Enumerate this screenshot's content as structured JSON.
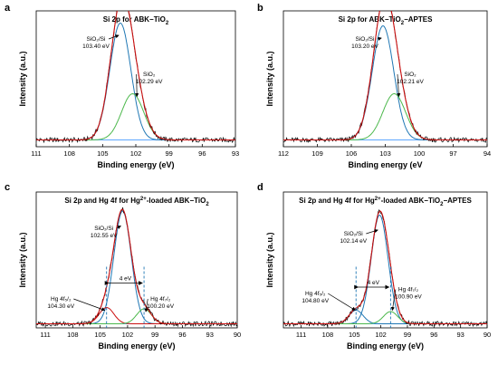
{
  "colors": {
    "raw": "#000000",
    "fit": "#cc1111",
    "main": "#1f77b4",
    "side": "#4cb84c",
    "baseline": "#5fa8ff",
    "arrow": "#000000"
  },
  "chart_data": [
    {
      "type": "line",
      "letter": "a",
      "title_parts": [
        {
          "t": "Si 2p for ABK−TiO"
        },
        {
          "t": "2",
          "sub": true
        }
      ],
      "xlabel": "Binding energy (eV)",
      "ylabel": "Intensity (a.u.)",
      "xlim": [
        111,
        93
      ],
      "xticks": [
        111,
        108,
        105,
        102,
        99,
        96,
        93
      ],
      "series": [
        {
          "center": 103.4,
          "amp": 0.86,
          "width": 0.95,
          "color_key": "main"
        },
        {
          "center": 102.29,
          "amp": 0.34,
          "width": 1.0,
          "color_key": "side"
        }
      ],
      "baseline": 0.05,
      "annotations": [
        {
          "lines": [
            "SiO₂/Si",
            "103.40 eV"
          ],
          "label_at": [
            105.6,
            0.78
          ],
          "arrow_to": [
            103.55,
            0.82
          ]
        },
        {
          "lines": [
            "SiO₂",
            "102.29 eV"
          ],
          "label_at": [
            100.8,
            0.52
          ],
          "arrow_to": [
            101.9,
            0.37
          ]
        }
      ]
    },
    {
      "type": "line",
      "letter": "b",
      "title_parts": [
        {
          "t": "Si 2p for ABK−TiO"
        },
        {
          "t": "2",
          "sub": true
        },
        {
          "t": "−APTES"
        }
      ],
      "xlabel": "Binding energy (eV",
      "ylabel": "Intensity (a.u.)",
      "xlim": [
        112,
        94
      ],
      "xticks": [
        112,
        109,
        106,
        103,
        100,
        97,
        94
      ],
      "series": [
        {
          "center": 103.2,
          "amp": 0.84,
          "width": 0.95,
          "color_key": "main"
        },
        {
          "center": 102.21,
          "amp": 0.34,
          "width": 1.0,
          "color_key": "side"
        }
      ],
      "baseline": 0.05,
      "annotations": [
        {
          "lines": [
            "SiO₂/Si",
            "103.20 eV"
          ],
          "label_at": [
            104.8,
            0.78
          ],
          "arrow_to": [
            103.35,
            0.8
          ]
        },
        {
          "lines": [
            "SiO₂",
            "102.21 eV"
          ],
          "label_at": [
            100.8,
            0.52
          ],
          "arrow_to": [
            101.8,
            0.37
          ]
        }
      ]
    },
    {
      "type": "line",
      "letter": "c",
      "title_parts": [
        {
          "t": "Si 2p and Hg 4f for Hg"
        },
        {
          "t": "2+",
          "sup": true
        },
        {
          "t": "-loaded ABK−TiO"
        },
        {
          "t": "2",
          "sub": true
        }
      ],
      "xlabel": "Binding energy (eV)",
      "ylabel": "Intensity (a.u.)",
      "xlim": [
        112,
        90
      ],
      "xticks": [
        111,
        108,
        105,
        102,
        99,
        96,
        93,
        90
      ],
      "series": [
        {
          "center": 102.55,
          "amp": 0.83,
          "width": 0.95,
          "color_key": "main"
        },
        {
          "center": 104.3,
          "amp": 0.12,
          "width": 0.8,
          "color_key": "fit"
        },
        {
          "center": 100.2,
          "amp": 0.11,
          "width": 0.8,
          "color_key": "side"
        }
      ],
      "baseline": 0.03,
      "vlines": [
        104.3,
        100.2
      ],
      "span": {
        "label": "4 eV",
        "from": 104.3,
        "to": 100.2,
        "y": 0.33
      },
      "annotations": [
        {
          "lines": [
            "SiO₂/Si",
            "102.55 eV"
          ],
          "label_at": [
            104.6,
            0.72
          ],
          "arrow_to": [
            102.75,
            0.75
          ]
        },
        {
          "lines": [
            "Hg 4f₅/₂",
            "104.30 eV"
          ],
          "label_at": [
            109.3,
            0.2
          ],
          "arrow_to": [
            104.5,
            0.13
          ]
        },
        {
          "lines": [
            "Hg 4f₇/₂",
            "100.20 eV"
          ],
          "label_at": [
            98.4,
            0.2
          ],
          "arrow_to": [
            100.0,
            0.12
          ]
        }
      ]
    },
    {
      "type": "line",
      "letter": "d",
      "title_parts": [
        {
          "t": "Si 2p and Hg 4f for Hg"
        },
        {
          "t": "2+",
          "sup": true
        },
        {
          "t": "-loaded ABK−TiO"
        },
        {
          "t": "2",
          "sub": true
        },
        {
          "t": "−APTES"
        }
      ],
      "xlabel": "Binding energy (eV)",
      "ylabel": "Intensity (a.u.)",
      "xlim": [
        113,
        90
      ],
      "xticks": [
        111,
        108,
        105,
        102,
        99,
        96,
        93,
        90
      ],
      "series": [
        {
          "center": 102.14,
          "amp": 0.8,
          "width": 0.95,
          "color_key": "main"
        },
        {
          "center": 104.8,
          "amp": 0.1,
          "width": 0.8,
          "color_key": "main"
        },
        {
          "center": 100.9,
          "amp": 0.09,
          "width": 0.8,
          "color_key": "side"
        }
      ],
      "baseline": 0.03,
      "vlines": [
        104.8,
        100.9
      ],
      "span": {
        "label": "4 eV",
        "from": 104.8,
        "to": 100.9,
        "y": 0.3
      },
      "annotations": [
        {
          "lines": [
            "SiO₂/Si",
            "102.14 eV"
          ],
          "label_at": [
            105.1,
            0.68
          ],
          "arrow_to": [
            102.35,
            0.72
          ]
        },
        {
          "lines": [
            "Hg 4f₅/₂",
            "104.80 eV"
          ],
          "label_at": [
            109.4,
            0.24
          ],
          "arrow_to": [
            104.9,
            0.13
          ]
        },
        {
          "lines": [
            "Hg 4f₇/₂",
            "100.90 eV"
          ],
          "label_at": [
            98.9,
            0.27
          ],
          "arrow_to": [
            100.7,
            0.13
          ]
        }
      ]
    }
  ]
}
